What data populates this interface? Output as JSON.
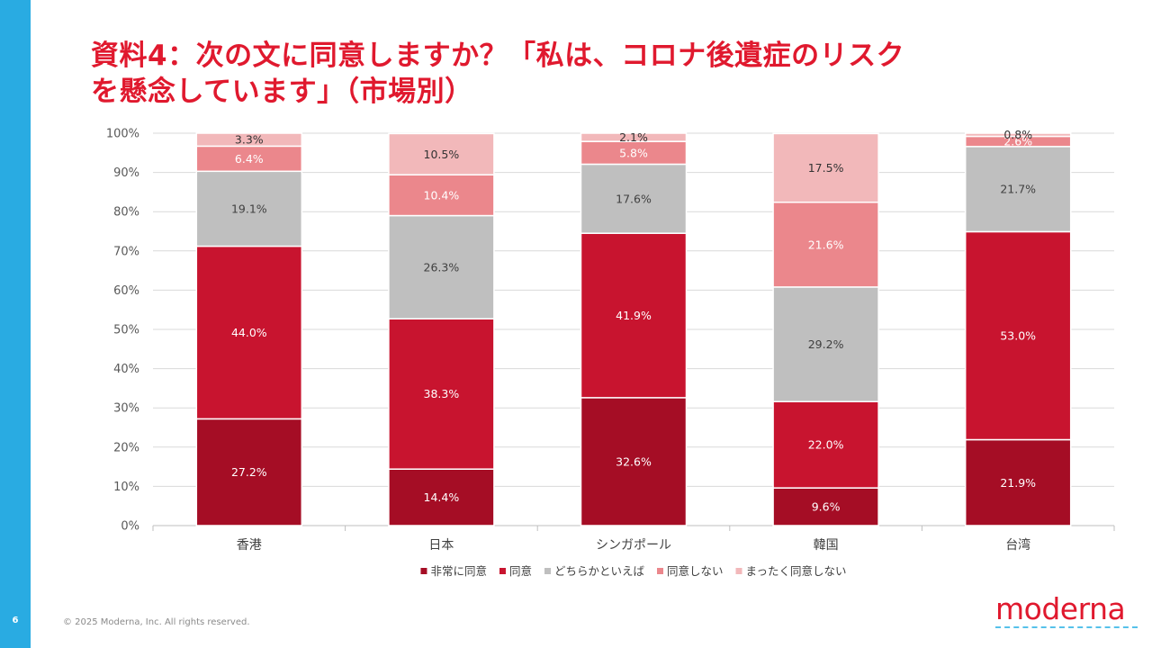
{
  "slide": {
    "page_number": "6",
    "title_line1": "資料4：次の文に同意しますか？「私は、コロナ後遺症のリスク",
    "title_line2": "を懸念しています」（市場別）",
    "copyright": "© 2025 Moderna, Inc. All rights reserved.",
    "logo_text": "moderna"
  },
  "colors": {
    "accent_bar": "#29abe2",
    "title": "#e0192e",
    "strongly_agree": "#a50d25",
    "agree": "#c8142f",
    "neutral": "#bfbfbf",
    "disagree": "#eb878c",
    "strongly_disagree": "#f2b8ba"
  },
  "chart_data": {
    "type": "bar",
    "stacked": true,
    "title": "",
    "categories": [
      "香港",
      "日本",
      "シンガポール",
      "韓国",
      "台湾"
    ],
    "y_ticks": [
      "0%",
      "10%",
      "20%",
      "30%",
      "40%",
      "50%",
      "60%",
      "70%",
      "80%",
      "90%",
      "100%"
    ],
    "ylim": [
      0,
      100
    ],
    "legend_position": "bottom",
    "series": [
      {
        "name": "非常に同意",
        "color": "#a50d25",
        "label_color": "#ffffff",
        "values": [
          27.2,
          14.4,
          32.6,
          9.6,
          21.9
        ],
        "labels": [
          "27.2%",
          "14.4%",
          "32.6%",
          "9.6%",
          "21.9%"
        ]
      },
      {
        "name": "同意",
        "color": "#c8142f",
        "label_color": "#ffffff",
        "values": [
          44.0,
          38.3,
          41.9,
          22.0,
          53.0
        ],
        "labels": [
          "44.0%",
          "38.3%",
          "41.9%",
          "22.0%",
          "53.0%"
        ]
      },
      {
        "name": "どちらかといえば",
        "color": "#bfbfbf",
        "label_color": "#404040",
        "values": [
          19.1,
          26.3,
          17.6,
          29.2,
          21.7
        ],
        "labels": [
          "19.1%",
          "26.3%",
          "17.6%",
          "29.2%",
          "21.7%"
        ]
      },
      {
        "name": "同意しない",
        "color": "#eb878c",
        "label_color": "#ffffff",
        "values": [
          6.4,
          10.4,
          5.8,
          21.6,
          2.6
        ],
        "labels": [
          "6.4%",
          "10.4%",
          "5.8%",
          "21.6%",
          "2.6%"
        ]
      },
      {
        "name": "まったく同意しない",
        "color": "#f2b8ba",
        "label_color": "#333333",
        "values": [
          3.3,
          10.5,
          2.1,
          17.5,
          0.8
        ],
        "labels": [
          "3.3%",
          "10.5%",
          "2.1%",
          "17.5%",
          "0.8%"
        ]
      }
    ]
  }
}
